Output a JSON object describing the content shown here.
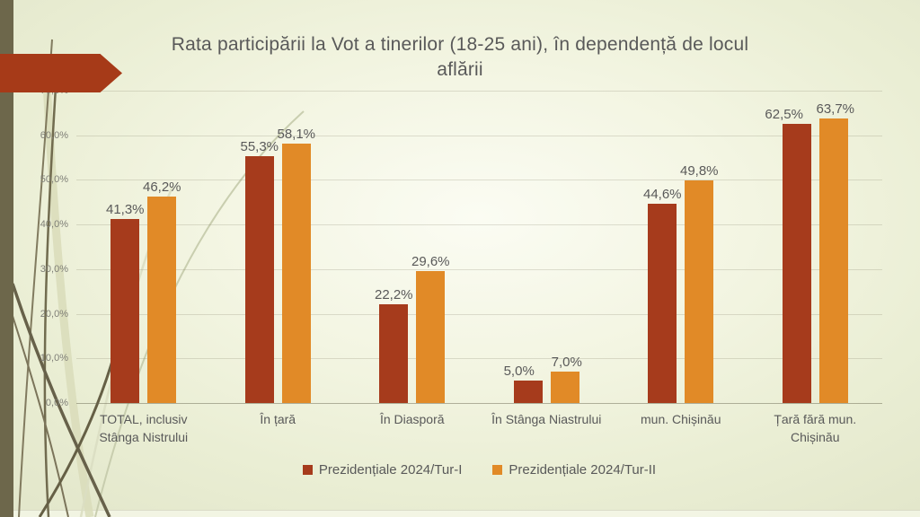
{
  "slide": {
    "title": "Rata participării la Vot a tinerilor (18-25 ani), în dependență de locul aflării"
  },
  "chart_data": {
    "type": "bar",
    "title": "Rata participării la Vot a tinerilor (18-25 ani), în dependență de locul aflării",
    "categories": [
      "TOTAL, inclusiv Stânga Nistrului",
      "În țară",
      "În Diasporă",
      "În Stânga Niastrului",
      "mun. Chișinău",
      "Țară fără mun. Chișinău"
    ],
    "series": [
      {
        "name": "Prezidențiale 2024/Tur-I",
        "color": "#a63b1c",
        "values": [
          41.3,
          55.3,
          22.2,
          5.0,
          44.6,
          62.5
        ],
        "value_labels": [
          "41,3%",
          "55,3%",
          "22,2%",
          "5,0%",
          "44,6%",
          "62,5%"
        ]
      },
      {
        "name": "Prezidențiale 2024/Tur-II",
        "color": "#e18a27",
        "values": [
          46.2,
          58.1,
          29.6,
          7.0,
          49.8,
          63.7
        ],
        "value_labels": [
          "46,2%",
          "58,1%",
          "29,6%",
          "7,0%",
          "49,8%",
          "63,7%"
        ]
      }
    ],
    "xlabel": "",
    "ylabel": "",
    "y_axis": {
      "min": 0,
      "max": 70,
      "step": 10,
      "tick_labels": [
        "0,0%",
        "10,0%",
        "20,0%",
        "30,0%",
        "40,0%",
        "50,0%",
        "60,0%",
        "70,0%"
      ]
    },
    "grid": true,
    "legend_position": "bottom"
  },
  "theme": {
    "background": "#eaeed4",
    "accent_strip": "#6d674b",
    "arrow_banner": "#a63a18",
    "text": "#595959",
    "tick_text": "#7f7f77"
  }
}
